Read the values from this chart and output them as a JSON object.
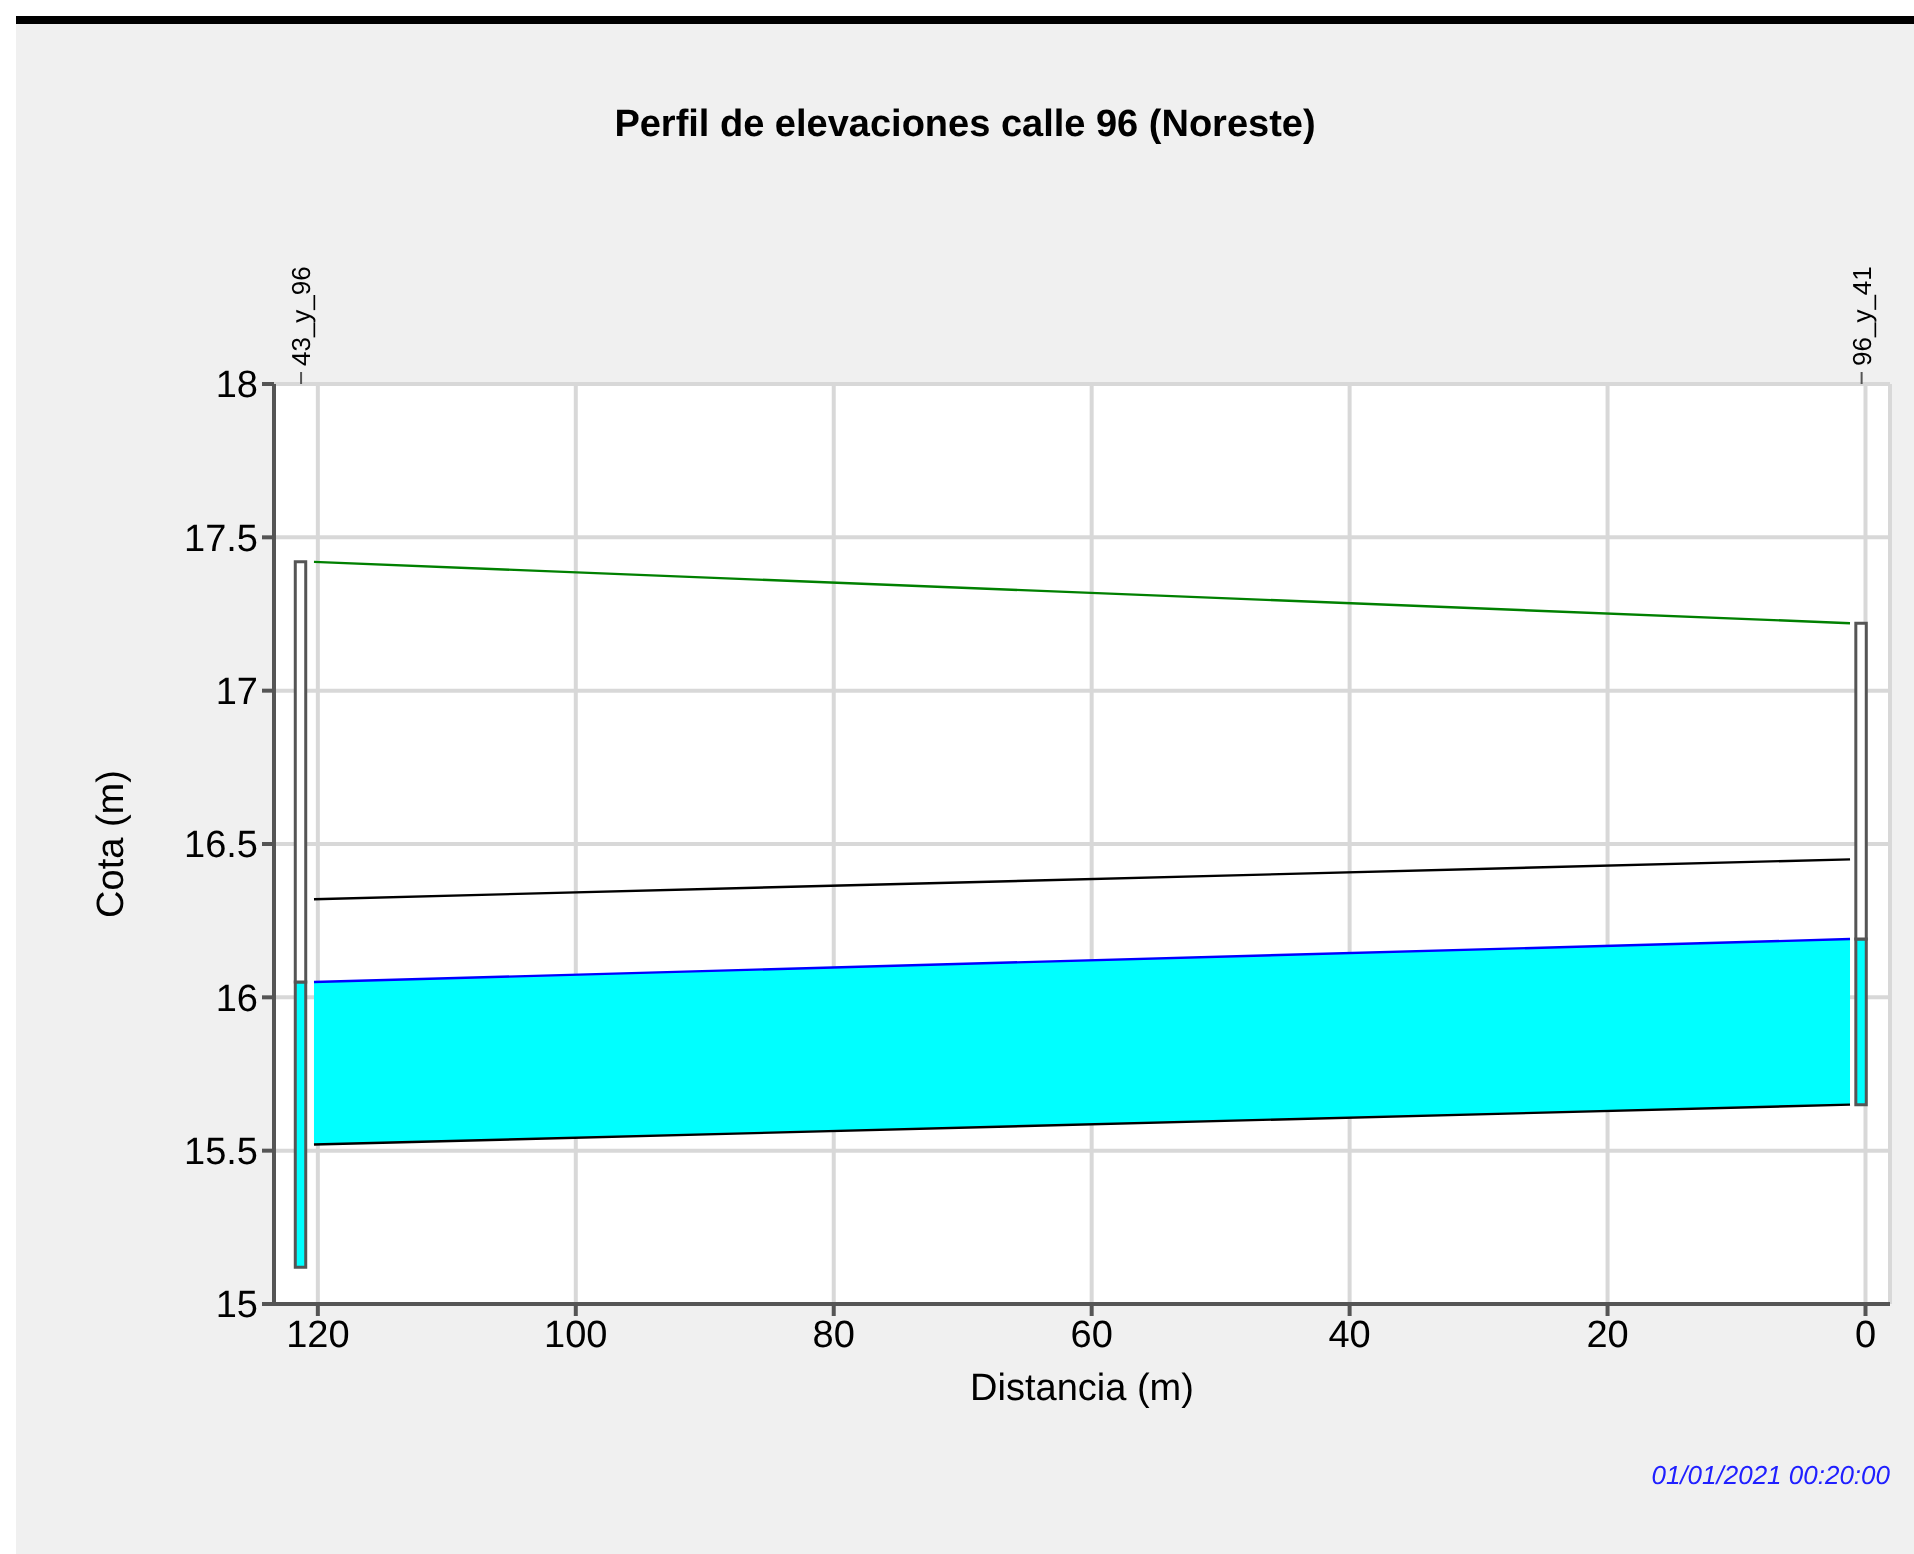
{
  "chart_data": {
    "type": "line",
    "title": "Perfil de elevaciones calle 96 (Noreste)",
    "xlabel": "Distancia (m)",
    "ylabel": "Cota (m)",
    "xlim": [
      123.4,
      -1.9
    ],
    "xticks": [
      120,
      100,
      80,
      60,
      40,
      20,
      0
    ],
    "ylim": [
      15,
      18
    ],
    "yticks": [
      15,
      15.5,
      16,
      16.5,
      17,
      17.5,
      18
    ],
    "grid": true,
    "series": [
      {
        "type": "line",
        "color": "#0000ff",
        "x": [
          120.3,
          1.2
        ],
        "values": [
          16.05,
          16.19
        ],
        "lower": [
          15.52,
          15.65
        ],
        "upper": [
          16.05,
          16.19
        ]
      },
      {
        "color": "#008000",
        "x": [
          120.3,
          1.2
        ],
        "values": [
          17.42,
          17.22
        ]
      },
      {
        "color": "#000000",
        "x": [
          120.3,
          1.2
        ],
        "values": [
          16.32,
          16.45
        ]
      },
      {
        "color": "#000000",
        "x": [
          120.3,
          1.2
        ],
        "values": [
          15.52,
          15.65
        ]
      },
      {
        "type": "bar",
        "color": "#00ffff",
        "x": [
          121.3,
          0.3
        ],
        "base": [
          15.12,
          15.65
        ],
        "values": [
          0.93,
          0.54
        ]
      },
      {
        "type": "bar",
        "color": "#ffffff",
        "x": [
          121.3,
          0.3
        ],
        "base": [
          16.05,
          16.19
        ],
        "values": [
          1.37,
          1.03
        ]
      }
    ],
    "annotations": [
      "43_y_96",
      "96_y_41",
      "01/01/2021 00:20:00"
    ]
  }
}
